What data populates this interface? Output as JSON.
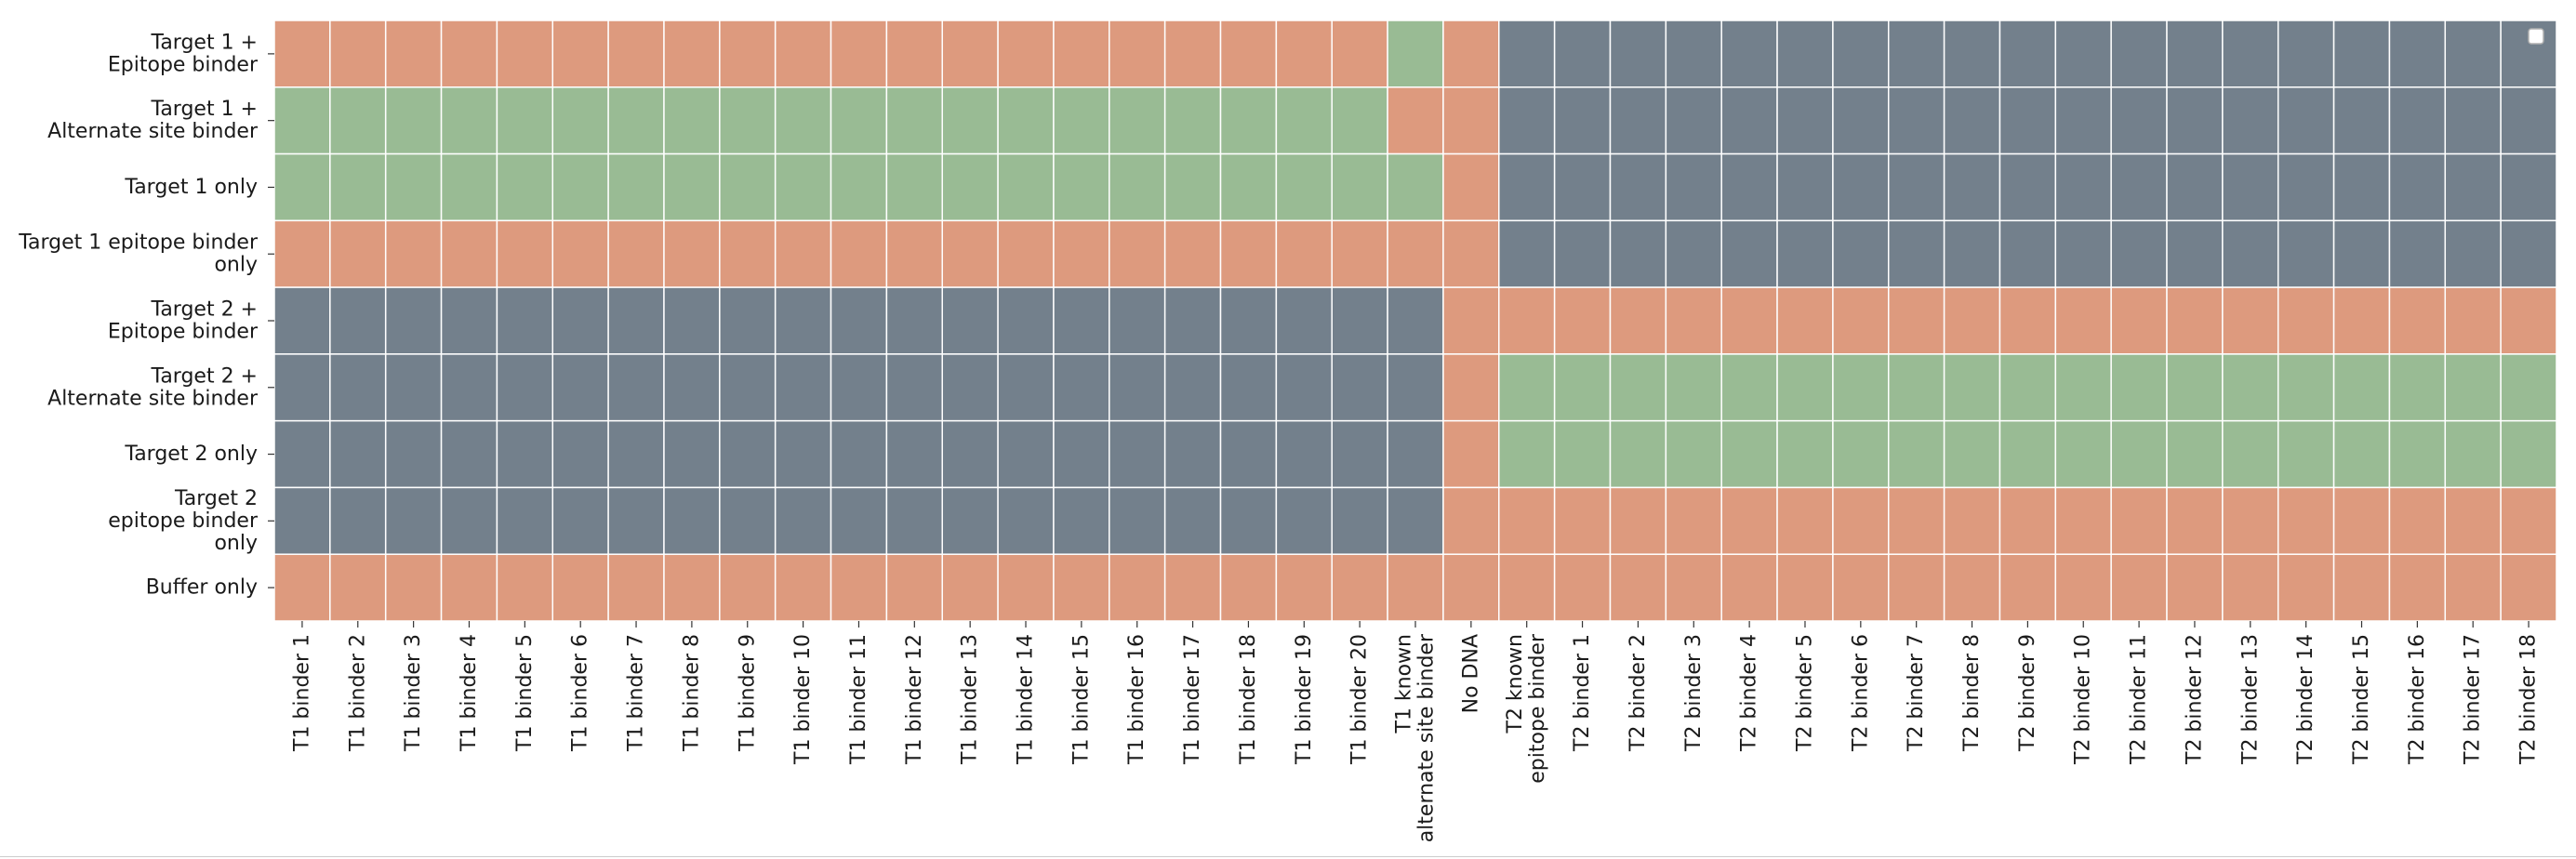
{
  "chart_data": {
    "type": "heatmap",
    "title": "",
    "xlabel": "",
    "ylabel": "",
    "rows": [
      [
        "Target 1 +",
        "Epitope binder"
      ],
      [
        "Target 1 +",
        "Alternate site binder"
      ],
      [
        "Target 1 only"
      ],
      [
        "Target 1 epitope binder",
        "only"
      ],
      [
        "Target 2 +",
        "Epitope binder"
      ],
      [
        "Target 2 +",
        "Alternate site binder"
      ],
      [
        "Target 2 only"
      ],
      [
        "Target 2",
        "epitope binder",
        "only"
      ],
      [
        "Buffer only"
      ]
    ],
    "columns": [
      [
        "T1 binder 1"
      ],
      [
        "T1 binder 2"
      ],
      [
        "T1 binder 3"
      ],
      [
        "T1 binder 4"
      ],
      [
        "T1 binder 5"
      ],
      [
        "T1 binder 6"
      ],
      [
        "T1 binder 7"
      ],
      [
        "T1 binder 8"
      ],
      [
        "T1 binder 9"
      ],
      [
        "T1 binder 10"
      ],
      [
        "T1 binder 11"
      ],
      [
        "T1 binder 12"
      ],
      [
        "T1 binder 13"
      ],
      [
        "T1 binder 14"
      ],
      [
        "T1 binder 15"
      ],
      [
        "T1 binder 16"
      ],
      [
        "T1 binder 17"
      ],
      [
        "T1 binder 18"
      ],
      [
        "T1 binder 19"
      ],
      [
        "T1 binder 20"
      ],
      [
        "T1 known",
        "alternate site binder"
      ],
      [
        "No DNA"
      ],
      [
        "T2 known",
        "epitope binder"
      ],
      [
        "T2 binder 1"
      ],
      [
        "T2 binder 2"
      ],
      [
        "T2 binder 3"
      ],
      [
        "T2 binder 4"
      ],
      [
        "T2 binder 5"
      ],
      [
        "T2 binder 6"
      ],
      [
        "T2 binder 7"
      ],
      [
        "T2 binder 8"
      ],
      [
        "T2 binder 9"
      ],
      [
        "T2 binder 10"
      ],
      [
        "T2 binder 11"
      ],
      [
        "T2 binder 12"
      ],
      [
        "T2 binder 13"
      ],
      [
        "T2 binder 14"
      ],
      [
        "T2 binder 15"
      ],
      [
        "T2 binder 16"
      ],
      [
        "T2 binder 17"
      ],
      [
        "T2 binder 18"
      ]
    ],
    "category_colors": {
      "O": "#dd9a7e",
      "G": "#99bb94",
      "S": "#73808c"
    },
    "grid_line_color": "#ffffff",
    "cells": [
      "OOOOOOOOOOOOOOOOOOOOGOSSSSSSSSSSSSSSSSSSS",
      "GGGGGGGGGGGGGGGGGGGGOOSSSSSSSSSSSSSSSSSSS",
      "GGGGGGGGGGGGGGGGGGGGGOSSSSSSSSSSSSSSSSSSS",
      "OOOOOOOOOOOOOOOOOOOOOOSSSSSSSSSSSSSSSSSSS",
      "SSSSSSSSSSSSSSSSSSSSSOOOOOOOOOOOOOOOOOOOO",
      "SSSSSSSSSSSSSSSSSSSSSOGGGGGGGGGGGGGGGGGGG",
      "SSSSSSSSSSSSSSSSSSSSSOGGGGGGGGGGGGGGGGGGG",
      "SSSSSSSSSSSSSSSSSSSSSOOOOOOOOOOOOOOOOOOOO",
      "OOOOOOOOOOOOOOOOOOOOOOOOOOOOOOOOOOOOOOOOO"
    ],
    "legend": {
      "position": "top-right",
      "entries": []
    }
  }
}
